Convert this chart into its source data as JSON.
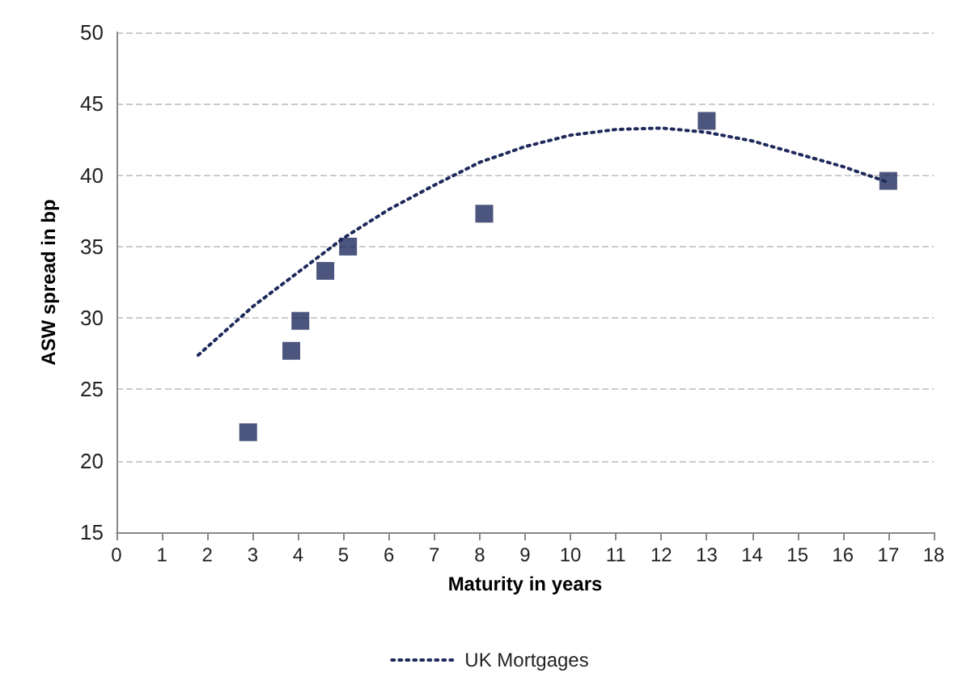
{
  "chart_data": {
    "type": "scatter",
    "xlabel": "Maturity in years",
    "ylabel": "ASW spread in bp",
    "xlim": [
      0,
      18
    ],
    "xticks": [
      0,
      1,
      2,
      3,
      4,
      5,
      6,
      7,
      8,
      9,
      10,
      11,
      12,
      13,
      14,
      15,
      16,
      17,
      18
    ],
    "ylim": [
      15,
      50
    ],
    "yticks": [
      15,
      20,
      25,
      30,
      35,
      40,
      45,
      50
    ],
    "grid": "y",
    "legend": "bottom",
    "series": [
      {
        "color": "#1f2a5c",
        "marker": "square",
        "x": [
          2.9,
          3.85,
          4.05,
          4.6,
          5.1,
          8.1,
          13,
          17
        ],
        "values": [
          22,
          27.7,
          29.8,
          33.3,
          35,
          37.3,
          43.8,
          39.6
        ]
      },
      {
        "type": "line",
        "name": "UK Mortgages",
        "color": "#1f2a5c",
        "marker": "none",
        "line_style": "dotted",
        "x": [
          1.8,
          3,
          4,
          5,
          6,
          7,
          8,
          9,
          10,
          11,
          12,
          13,
          14,
          15,
          16,
          17
        ],
        "values": [
          27.4,
          30.8,
          33.2,
          35.6,
          37.6,
          39.3,
          40.9,
          42,
          42.8,
          43.2,
          43.3,
          43,
          42.4,
          41.5,
          40.6,
          39.5
        ]
      }
    ]
  }
}
